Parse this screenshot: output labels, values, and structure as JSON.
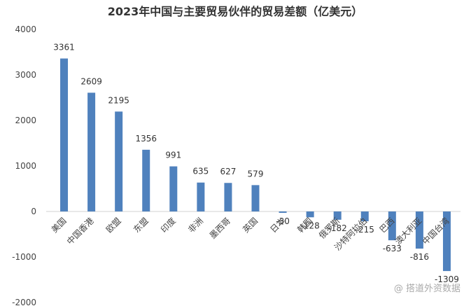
{
  "chart_data": {
    "type": "bar",
    "title": "2023年中国与主要贸易伙伴的贸易差额（亿美元）",
    "xlabel": "",
    "ylabel": "",
    "ylim": [
      -2000,
      4000
    ],
    "yticks": [
      4000,
      3000,
      2000,
      1000,
      0,
      -1000,
      -2000
    ],
    "grid": false,
    "categories": [
      "美国",
      "中国香港",
      "欧盟",
      "东盟",
      "印度",
      "非洲",
      "墨西哥",
      "英国",
      "日本",
      "韩国",
      "俄罗斯",
      "沙特阿拉伯",
      "巴西",
      "澳大利亚",
      "中国台湾"
    ],
    "values": [
      3361,
      2609,
      2195,
      1356,
      991,
      635,
      627,
      579,
      -30,
      -128,
      -182,
      -215,
      -633,
      -816,
      -1309
    ],
    "data_labels": [
      "3361",
      "2609",
      "2195",
      "1356",
      "991",
      "635",
      "627",
      "579",
      "-30",
      "-128",
      "-182",
      "-215",
      "-633",
      "-816",
      "-1309"
    ],
    "bar_color": "#4f81bd"
  },
  "watermark": "@ 搭道外资数据"
}
